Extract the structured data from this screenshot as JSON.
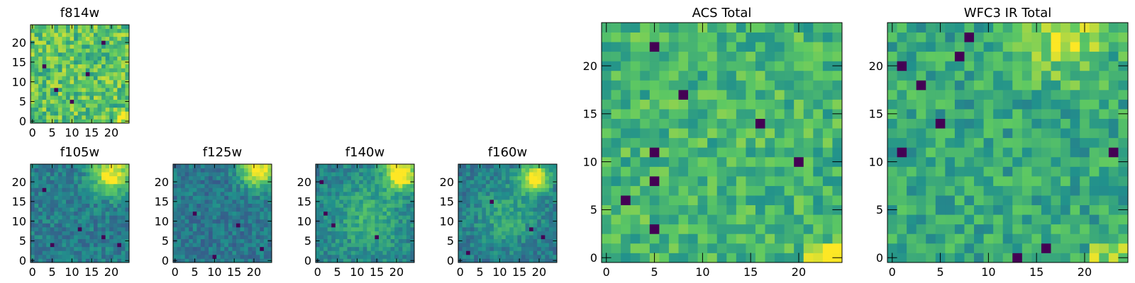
{
  "figure": {
    "colormap": "viridis",
    "colors": {
      "vmin": "#440154",
      "q1": "#3b528b",
      "mid": "#21918c",
      "q3": "#5ec962",
      "vmax": "#fde725"
    }
  },
  "chart_data": [
    {
      "id": "f814w",
      "type": "heatmap",
      "title": "f814w",
      "grid_size": 25,
      "xlim": [
        0,
        24
      ],
      "ylim": [
        0,
        24
      ],
      "xticks": [
        "0",
        "5",
        "10",
        "15",
        "20"
      ],
      "yticks": [
        "0",
        "5",
        "10",
        "15",
        "20"
      ],
      "value_range": [
        0,
        1
      ],
      "noise": 0.2,
      "mean": 0.72,
      "seed": 11,
      "bright_region": [
        22,
        1
      ],
      "blobs": [],
      "dark_spots": [
        [
          3,
          14
        ],
        [
          10,
          5
        ],
        [
          18,
          20
        ],
        [
          6,
          8
        ],
        [
          14,
          12
        ]
      ]
    },
    {
      "id": "f105w",
      "type": "heatmap",
      "title": "f105w",
      "grid_size": 25,
      "xlim": [
        0,
        24
      ],
      "ylim": [
        0,
        24
      ],
      "xticks": [
        "0",
        "5",
        "10",
        "15",
        "20"
      ],
      "yticks": [
        "0",
        "5",
        "10",
        "15",
        "20"
      ],
      "value_range": [
        0,
        1
      ],
      "noise": 0.12,
      "mean": 0.42,
      "seed": 22,
      "bright_region": [],
      "blobs": [
        [
          20,
          22,
          3.5,
          0.6
        ]
      ],
      "dark_spots": [
        [
          5,
          4
        ],
        [
          12,
          8
        ],
        [
          3,
          18
        ],
        [
          18,
          6
        ],
        [
          22,
          4
        ]
      ]
    },
    {
      "id": "f125w",
      "type": "heatmap",
      "title": "f125w",
      "grid_size": 25,
      "xlim": [
        0,
        24
      ],
      "ylim": [
        0,
        24
      ],
      "xticks": [
        "0",
        "5",
        "10",
        "15",
        "20"
      ],
      "yticks": [
        "0",
        "5",
        "10",
        "15",
        "20"
      ],
      "value_range": [
        0,
        1
      ],
      "noise": 0.12,
      "mean": 0.4,
      "seed": 33,
      "bright_region": [],
      "blobs": [
        [
          21,
          23,
          3.0,
          0.65
        ]
      ],
      "dark_spots": [
        [
          10,
          1
        ],
        [
          16,
          9
        ],
        [
          5,
          12
        ],
        [
          22,
          3
        ]
      ]
    },
    {
      "id": "f140w",
      "type": "heatmap",
      "title": "f140w",
      "grid_size": 25,
      "xlim": [
        0,
        24
      ],
      "ylim": [
        0,
        24
      ],
      "xticks": [
        "0",
        "5",
        "10",
        "15",
        "20"
      ],
      "yticks": [
        "0",
        "5",
        "10",
        "15",
        "20"
      ],
      "value_range": [
        0,
        1
      ],
      "noise": 0.12,
      "mean": 0.44,
      "seed": 44,
      "bright_region": [],
      "blobs": [
        [
          21,
          22,
          2.8,
          0.7
        ],
        [
          13,
          11,
          6.0,
          0.2
        ]
      ],
      "dark_spots": [
        [
          2,
          12
        ],
        [
          4,
          9
        ],
        [
          15,
          6
        ],
        [
          1,
          20
        ]
      ]
    },
    {
      "id": "f160w",
      "type": "heatmap",
      "title": "f160w",
      "grid_size": 25,
      "xlim": [
        0,
        24
      ],
      "ylim": [
        0,
        24
      ],
      "xticks": [
        "0",
        "5",
        "10",
        "15",
        "20"
      ],
      "yticks": [
        "0",
        "5",
        "10",
        "15",
        "20"
      ],
      "value_range": [
        0,
        1
      ],
      "noise": 0.12,
      "mean": 0.4,
      "seed": 55,
      "bright_region": [],
      "blobs": [
        [
          19,
          21,
          2.5,
          0.7
        ],
        [
          12,
          12,
          6.0,
          0.2
        ]
      ],
      "dark_spots": [
        [
          2,
          2
        ],
        [
          18,
          8
        ],
        [
          8,
          15
        ],
        [
          21,
          6
        ]
      ]
    },
    {
      "id": "acs_total",
      "type": "heatmap",
      "title": "ACS Total",
      "grid_size": 25,
      "xlim": [
        0,
        24
      ],
      "ylim": [
        0,
        24
      ],
      "xticks": [
        "0",
        "5",
        "10",
        "15",
        "20"
      ],
      "yticks": [
        "0",
        "5",
        "10",
        "15",
        "20"
      ],
      "value_range": [
        0,
        1
      ],
      "noise": 0.16,
      "mean": 0.66,
      "seed": 66,
      "bright_region": [
        21,
        0
      ],
      "blobs": [],
      "dark_spots": [
        [
          5,
          22
        ],
        [
          5,
          11
        ],
        [
          16,
          14
        ],
        [
          2,
          6
        ],
        [
          5,
          3
        ],
        [
          20,
          10
        ],
        [
          5,
          8
        ],
        [
          8,
          17
        ]
      ]
    },
    {
      "id": "wfc3_ir_total",
      "type": "heatmap",
      "title": "WFC3 IR Total",
      "grid_size": 25,
      "xlim": [
        0,
        24
      ],
      "ylim": [
        0,
        24
      ],
      "xticks": [
        "0",
        "5",
        "10",
        "15",
        "20"
      ],
      "yticks": [
        "0",
        "5",
        "10",
        "15",
        "20"
      ],
      "value_range": [
        0,
        1
      ],
      "noise": 0.16,
      "mean": 0.6,
      "seed": 77,
      "bright_region": [
        21,
        0
      ],
      "blobs": [
        [
          18,
          23,
          3.0,
          0.3
        ]
      ],
      "dark_spots": [
        [
          7,
          21
        ],
        [
          1,
          20
        ],
        [
          3,
          18
        ],
        [
          5,
          14
        ],
        [
          1,
          11
        ],
        [
          23,
          11
        ],
        [
          13,
          0
        ],
        [
          16,
          1
        ],
        [
          8,
          23
        ]
      ]
    }
  ]
}
